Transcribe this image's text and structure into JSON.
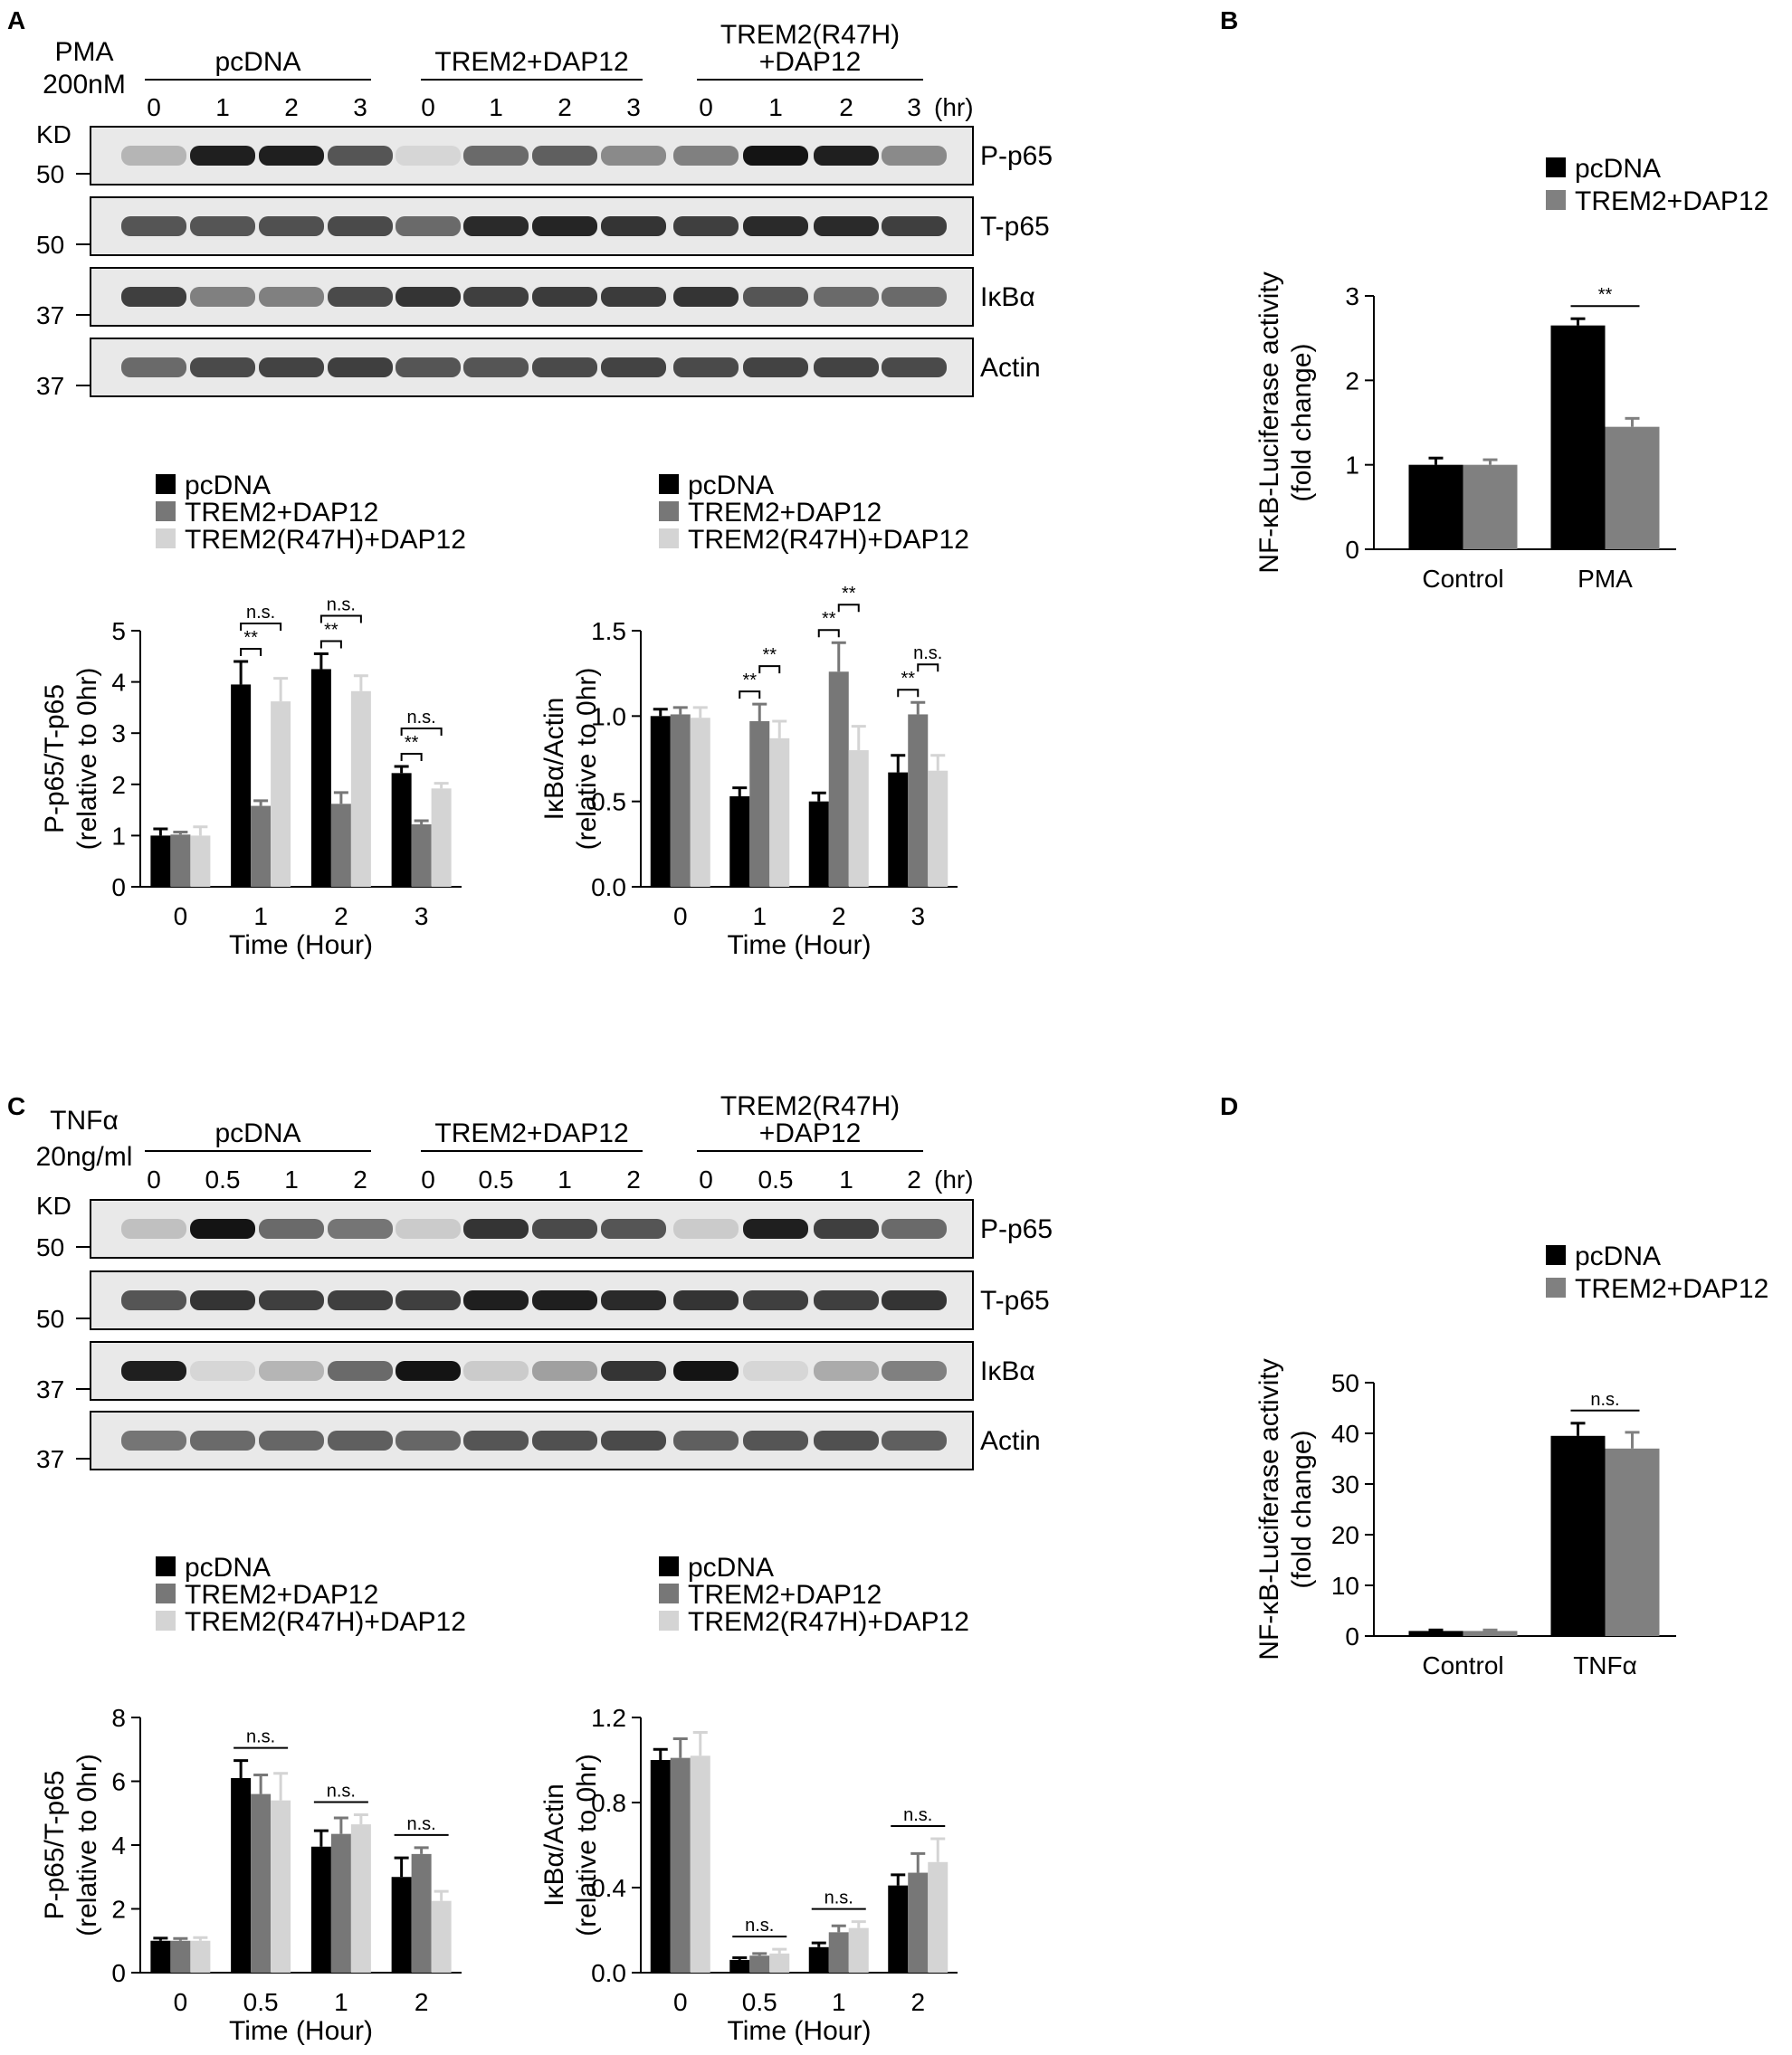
{
  "panels": {
    "A": "A",
    "B": "B",
    "C": "C",
    "D": "D"
  },
  "blots": [
    {
      "id": "A",
      "treatment": [
        "PMA",
        "200nM"
      ],
      "groups": [
        "pcDNA",
        "TREM2+DAP12",
        [
          "TREM2(R47H)",
          "+DAP12"
        ]
      ],
      "lanes": [
        "0",
        "1",
        "2",
        "3",
        "0",
        "1",
        "2",
        "3",
        "0",
        "1",
        "2",
        "3"
      ],
      "unit": "(hr)",
      "kd_label": "KD",
      "rows": [
        {
          "name": "P-p65",
          "marker": "50",
          "intensity": [
            0.25,
            0.95,
            0.95,
            0.7,
            0.1,
            0.6,
            0.65,
            0.45,
            0.5,
            1.0,
            0.95,
            0.45
          ]
        },
        {
          "name": "T-p65",
          "marker": "50",
          "intensity": [
            0.7,
            0.7,
            0.72,
            0.75,
            0.6,
            0.9,
            0.92,
            0.85,
            0.8,
            0.9,
            0.9,
            0.8
          ]
        },
        {
          "name": "IκBα",
          "marker": "37",
          "intensity": [
            0.8,
            0.5,
            0.5,
            0.75,
            0.85,
            0.8,
            0.82,
            0.82,
            0.85,
            0.7,
            0.6,
            0.6
          ]
        },
        {
          "name": "Actin",
          "marker": "37",
          "intensity": [
            0.6,
            0.75,
            0.78,
            0.8,
            0.7,
            0.7,
            0.75,
            0.78,
            0.75,
            0.78,
            0.78,
            0.75
          ]
        }
      ]
    },
    {
      "id": "C",
      "treatment": [
        "TNFα",
        "20ng/ml"
      ],
      "groups": [
        "pcDNA",
        "TREM2+DAP12",
        [
          "TREM2(R47H)",
          "+DAP12"
        ]
      ],
      "lanes": [
        "0",
        "0.5",
        "1",
        "2",
        "0",
        "0.5",
        "1",
        "2",
        "0",
        "0.5",
        "1",
        "2"
      ],
      "unit": "(hr)",
      "kd_label": "KD",
      "rows": [
        {
          "name": "P-p65",
          "marker": "50",
          "intensity": [
            0.2,
            1.0,
            0.6,
            0.55,
            0.15,
            0.85,
            0.75,
            0.7,
            0.15,
            0.95,
            0.8,
            0.6
          ]
        },
        {
          "name": "T-p65",
          "marker": "50",
          "intensity": [
            0.7,
            0.85,
            0.8,
            0.8,
            0.8,
            0.95,
            0.95,
            0.9,
            0.85,
            0.8,
            0.8,
            0.85
          ]
        },
        {
          "name": "IκBα",
          "marker": "37",
          "intensity": [
            0.95,
            0.1,
            0.25,
            0.6,
            1.0,
            0.15,
            0.35,
            0.85,
            1.0,
            0.1,
            0.3,
            0.5
          ]
        },
        {
          "name": "Actin",
          "marker": "37",
          "intensity": [
            0.55,
            0.6,
            0.62,
            0.65,
            0.62,
            0.7,
            0.72,
            0.75,
            0.65,
            0.7,
            0.72,
            0.65
          ]
        }
      ]
    }
  ],
  "chart_data": [
    {
      "id": "A-left",
      "type": "bar",
      "categories": [
        "0",
        "1",
        "2",
        "3"
      ],
      "ylabel": [
        "P-p65/T-p65",
        "(relative to 0hr)"
      ],
      "xlabel": "Time (Hour)",
      "ylim": [
        0,
        5
      ],
      "yticks": [
        "0",
        "1",
        "2",
        "3",
        "4",
        "5"
      ],
      "series": [
        {
          "name": "pcDNA",
          "values": [
            1.0,
            3.95,
            4.25,
            2.22
          ],
          "errors": [
            0.13,
            0.45,
            0.3,
            0.13
          ]
        },
        {
          "name": "TREM2+DAP12",
          "values": [
            1.02,
            1.58,
            1.62,
            1.22
          ],
          "errors": [
            0.05,
            0.1,
            0.22,
            0.07
          ]
        },
        {
          "name": "TREM2(R47H)+DAP12",
          "values": [
            1.0,
            3.62,
            3.82,
            1.92
          ],
          "errors": [
            0.17,
            0.45,
            0.3,
            0.1
          ]
        }
      ],
      "significance": [
        {
          "cat": "1",
          "pair": [
            0,
            1
          ],
          "label": "**"
        },
        {
          "cat": "1",
          "pair": [
            0,
            2
          ],
          "label": "n.s."
        },
        {
          "cat": "2",
          "pair": [
            0,
            1
          ],
          "label": "**"
        },
        {
          "cat": "2",
          "pair": [
            0,
            2
          ],
          "label": "n.s."
        },
        {
          "cat": "3",
          "pair": [
            0,
            1
          ],
          "label": "**"
        },
        {
          "cat": "3",
          "pair": [
            0,
            2
          ],
          "label": "n.s."
        }
      ],
      "colors": [
        "#000000",
        "#777777",
        "#d4d4d4"
      ]
    },
    {
      "id": "A-right",
      "type": "bar",
      "categories": [
        "0",
        "1",
        "2",
        "3"
      ],
      "ylabel": [
        "IκBα/Actin",
        "(relative to 0hr)"
      ],
      "xlabel": "Time (Hour)",
      "ylim": [
        0,
        1.5
      ],
      "yticks": [
        "0.0",
        "0.5",
        "1.0",
        "1.5"
      ],
      "series": [
        {
          "name": "pcDNA",
          "values": [
            1.0,
            0.53,
            0.5,
            0.67
          ],
          "errors": [
            0.04,
            0.05,
            0.05,
            0.1
          ]
        },
        {
          "name": "TREM2+DAP12",
          "values": [
            1.01,
            0.97,
            1.26,
            1.01
          ],
          "errors": [
            0.04,
            0.1,
            0.17,
            0.07
          ]
        },
        {
          "name": "TREM2(R47H)+DAP12",
          "values": [
            0.99,
            0.87,
            0.8,
            0.68
          ],
          "errors": [
            0.06,
            0.1,
            0.14,
            0.09
          ]
        }
      ],
      "significance": [
        {
          "cat": "1",
          "pair": [
            0,
            1
          ],
          "label": "**"
        },
        {
          "cat": "1",
          "pair": [
            1,
            2
          ],
          "label": "**"
        },
        {
          "cat": "2",
          "pair": [
            0,
            1
          ],
          "label": "**"
        },
        {
          "cat": "2",
          "pair": [
            1,
            2
          ],
          "label": "**"
        },
        {
          "cat": "3",
          "pair": [
            0,
            1
          ],
          "label": "**"
        },
        {
          "cat": "3",
          "pair": [
            1,
            2
          ],
          "label": "n.s."
        }
      ],
      "colors": [
        "#000000",
        "#777777",
        "#d4d4d4"
      ]
    },
    {
      "id": "B",
      "type": "bar",
      "categories": [
        "Control",
        "PMA"
      ],
      "ylabel": [
        "NF-κB-Luciferase activity",
        "(fold change)"
      ],
      "xlabel": "",
      "ylim": [
        0,
        3
      ],
      "yticks": [
        "0",
        "1",
        "2",
        "3"
      ],
      "series": [
        {
          "name": "pcDNA",
          "values": [
            1.0,
            2.65
          ],
          "errors": [
            0.08,
            0.08
          ]
        },
        {
          "name": "TREM2+DAP12",
          "values": [
            1.0,
            1.45
          ],
          "errors": [
            0.06,
            0.1
          ]
        }
      ],
      "significance": [
        {
          "cat": "PMA",
          "pair": [
            0,
            1
          ],
          "label": "**"
        }
      ],
      "colors": [
        "#000000",
        "#808080"
      ]
    },
    {
      "id": "C-left",
      "type": "bar",
      "categories": [
        "0",
        "0.5",
        "1",
        "2"
      ],
      "ylabel": [
        "P-p65/T-p65",
        "(relative to 0hr)"
      ],
      "xlabel": "Time (Hour)",
      "ylim": [
        0,
        8
      ],
      "yticks": [
        "0",
        "2",
        "4",
        "6",
        "8"
      ],
      "series": [
        {
          "name": "pcDNA",
          "values": [
            1.0,
            6.1,
            3.95,
            3.0
          ],
          "errors": [
            0.08,
            0.55,
            0.5,
            0.6
          ]
        },
        {
          "name": "TREM2+DAP12",
          "values": [
            1.0,
            5.6,
            4.35,
            3.72
          ],
          "errors": [
            0.07,
            0.6,
            0.5,
            0.2
          ]
        },
        {
          "name": "TREM2(R47H)+DAP12",
          "values": [
            1.0,
            5.4,
            4.65,
            2.25
          ],
          "errors": [
            0.1,
            0.85,
            0.3,
            0.3
          ]
        }
      ],
      "significance": [
        {
          "cat": "0.5",
          "pair": [
            0,
            2
          ],
          "label": "n.s."
        },
        {
          "cat": "1",
          "pair": [
            0,
            2
          ],
          "label": "n.s."
        },
        {
          "cat": "2",
          "pair": [
            0,
            2
          ],
          "label": "n.s."
        }
      ],
      "colors": [
        "#000000",
        "#777777",
        "#d4d4d4"
      ]
    },
    {
      "id": "C-right",
      "type": "bar",
      "categories": [
        "0",
        "0.5",
        "1",
        "2"
      ],
      "ylabel": [
        "IκBα/Actin",
        "(relative to 0hr)"
      ],
      "xlabel": "Time (Hour)",
      "ylim": [
        0,
        1.2
      ],
      "yticks": [
        "0.0",
        "0.4",
        "0.8",
        "1.2"
      ],
      "series": [
        {
          "name": "pcDNA",
          "values": [
            1.0,
            0.06,
            0.12,
            0.41
          ],
          "errors": [
            0.05,
            0.01,
            0.02,
            0.05
          ]
        },
        {
          "name": "TREM2+DAP12",
          "values": [
            1.01,
            0.08,
            0.19,
            0.47
          ],
          "errors": [
            0.09,
            0.01,
            0.03,
            0.09
          ]
        },
        {
          "name": "TREM2(R47H)+DAP12",
          "values": [
            1.02,
            0.09,
            0.21,
            0.52
          ],
          "errors": [
            0.11,
            0.02,
            0.03,
            0.11
          ]
        }
      ],
      "significance": [
        {
          "cat": "0.5",
          "pair": [
            0,
            2
          ],
          "label": "n.s."
        },
        {
          "cat": "1",
          "pair": [
            0,
            2
          ],
          "label": "n.s."
        },
        {
          "cat": "2",
          "pair": [
            0,
            2
          ],
          "label": "n.s."
        }
      ],
      "colors": [
        "#000000",
        "#777777",
        "#d4d4d4"
      ]
    },
    {
      "id": "D",
      "type": "bar",
      "categories": [
        "Control",
        "TNFα"
      ],
      "ylabel": [
        "NF-κB-Luciferase activity",
        "(fold change)"
      ],
      "xlabel": "",
      "ylim": [
        0,
        50
      ],
      "yticks": [
        "0",
        "10",
        "20",
        "30",
        "40",
        "50"
      ],
      "series": [
        {
          "name": "pcDNA",
          "values": [
            1.0,
            39.5
          ],
          "errors": [
            0.2,
            2.5
          ]
        },
        {
          "name": "TREM2+DAP12",
          "values": [
            1.0,
            37.0
          ],
          "errors": [
            0.2,
            3.2
          ]
        }
      ],
      "significance": [
        {
          "cat": "TNFα",
          "pair": [
            0,
            1
          ],
          "label": "n.s."
        }
      ],
      "colors": [
        "#000000",
        "#808080"
      ]
    }
  ]
}
